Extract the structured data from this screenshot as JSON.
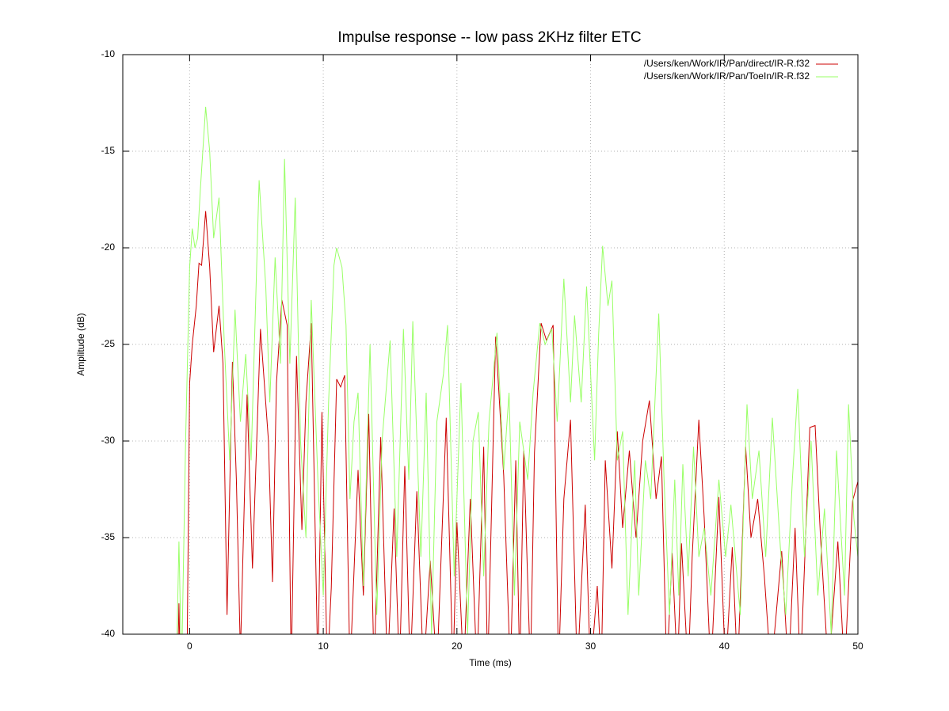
{
  "chart_data": {
    "type": "line",
    "title": "Impulse response -- low pass 2KHz filter ETC",
    "x_label": "Time (ms)",
    "y_label": "Amplitude (dB)",
    "xlim": [
      -5,
      50
    ],
    "xticks": [
      0,
      10,
      20,
      30,
      40,
      50
    ],
    "ylim": [
      -40,
      -10
    ],
    "yticks": [
      -40,
      -35,
      -30,
      -25,
      -20,
      -15,
      -10
    ],
    "grid": true,
    "legend": "top right",
    "series": [
      {
        "name": "/Users/ken/Work/IR/Pan/direct/IR-R.f32",
        "color": "#cc0000",
        "x": [
          -0.9,
          -0.8,
          -0.7,
          -0.2,
          0,
          0.2,
          0.5,
          0.7,
          0.9,
          1.2,
          1.5,
          1.8,
          2.2,
          2.5,
          2.8,
          3.2,
          3.5,
          3.8,
          4.3,
          4.7,
          5.3,
          5.9,
          6.2,
          6.5,
          6.9,
          7.3,
          7.6,
          8,
          8.4,
          8.7,
          9.1,
          9.6,
          9.9,
          10.3,
          10.6,
          11,
          11.3,
          11.6,
          12,
          12.6,
          13,
          13.4,
          13.8,
          14.3,
          14.8,
          15.3,
          15.7,
          16.1,
          16.5,
          17,
          17.5,
          18,
          18.5,
          19.2,
          19.7,
          20,
          20.5,
          21,
          21.5,
          22,
          22.3,
          22.9,
          23.5,
          24,
          24.4,
          24.7,
          25,
          25.5,
          25.8,
          26.3,
          26.7,
          27.2,
          27.6,
          28,
          28.5,
          29,
          29.6,
          30,
          30.5,
          30.8,
          31.1,
          31.6,
          32,
          32.4,
          32.9,
          33.4,
          33.9,
          34.4,
          34.9,
          35.3,
          35.7,
          36.1,
          36.5,
          36.8,
          37.3,
          37.6,
          38.1,
          38.5,
          39,
          39.6,
          40.1,
          40.6,
          41,
          41.6,
          42,
          42.5,
          43,
          43.5,
          44.3,
          44.8,
          45.3,
          45.7,
          46.4,
          46.8,
          47.2,
          47.8,
          48.5,
          49,
          49.6,
          50
        ],
        "values": [
          -42,
          -38.4,
          -42,
          -42,
          -27,
          -25,
          -23,
          -20.8,
          -20.9,
          -18.1,
          -21,
          -25.4,
          -23,
          -26,
          -39,
          -25.9,
          -32,
          -41,
          -27.6,
          -36.6,
          -24.2,
          -30,
          -37.3,
          -27,
          -22.7,
          -24,
          -42,
          -25.6,
          -34.6,
          -28,
          -23.9,
          -42,
          -28.5,
          -42,
          -37.6,
          -26.8,
          -27.2,
          -26.6,
          -42,
          -31.5,
          -38,
          -28.6,
          -42,
          -29.8,
          -42,
          -33.5,
          -42,
          -31.3,
          -42,
          -32.6,
          -42,
          -36.2,
          -42,
          -28.8,
          -42,
          -34.2,
          -42,
          -33,
          -42,
          -30.3,
          -42,
          -24.6,
          -31.8,
          -42,
          -31,
          -42,
          -30.5,
          -42,
          -30.6,
          -23.9,
          -24.8,
          -24,
          -42,
          -33,
          -28.9,
          -42,
          -33.3,
          -42,
          -37.5,
          -42,
          -31,
          -36.6,
          -29.5,
          -34.5,
          -30.5,
          -35,
          -30,
          -27.9,
          -33,
          -30.8,
          -42,
          -35.8,
          -42,
          -35.3,
          -42,
          -36,
          -28.9,
          -34,
          -42,
          -32.9,
          -42,
          -35.5,
          -42,
          -30.3,
          -35,
          -33,
          -37,
          -42,
          -35.7,
          -42,
          -34.5,
          -42,
          -29.3,
          -29.2,
          -35,
          -42,
          -35.2,
          -42,
          -33.1,
          -32.1
        ]
      },
      {
        "name": "/Users/ken/Work/IR/Pan/ToeIn/IR-R.f32",
        "color": "#99ff66",
        "x": [
          -1,
          -0.8,
          -0.6,
          -0.3,
          0,
          0.2,
          0.4,
          0.6,
          0.8,
          1.2,
          1.5,
          1.8,
          2.2,
          2.6,
          3,
          3.4,
          3.8,
          4.2,
          4.6,
          5.2,
          5.7,
          6,
          6.4,
          6.8,
          7.1,
          7.5,
          7.9,
          8.3,
          8.7,
          9.1,
          9.6,
          10,
          10.4,
          10.8,
          11,
          11.4,
          11.7,
          12,
          12.3,
          12.6,
          13,
          13.5,
          14,
          14.4,
          15,
          15.5,
          16,
          16.4,
          16.7,
          17.3,
          17.7,
          18.1,
          18.5,
          19,
          19.3,
          19.8,
          20.3,
          20.8,
          21.2,
          21.6,
          22,
          22.4,
          23,
          23.5,
          23.9,
          24.3,
          24.7,
          25.3,
          25.7,
          26.2,
          26.6,
          27.1,
          27.5,
          28,
          28.5,
          28.8,
          29.3,
          29.7,
          30.3,
          30.6,
          30.9,
          31.3,
          31.6,
          32,
          32.4,
          32.8,
          33.3,
          33.6,
          34.1,
          34.5,
          35.1,
          35.5,
          35.9,
          36.3,
          36.6,
          36.9,
          37.3,
          37.7,
          38.1,
          38.5,
          39,
          39.6,
          40.1,
          40.5,
          41.2,
          41.7,
          42.1,
          42.6,
          43.1,
          43.6,
          44.2,
          44.6,
          45.1,
          45.5,
          46,
          46.5,
          47,
          47.5,
          48,
          48.4,
          49,
          49.3,
          49.7,
          50
        ],
        "values": [
          -42,
          -35.2,
          -42,
          -30,
          -21,
          -19,
          -20,
          -19.5,
          -17,
          -12.7,
          -15,
          -19.5,
          -17.4,
          -25,
          -31,
          -23.2,
          -29,
          -25.5,
          -31,
          -16.5,
          -22,
          -28,
          -20.5,
          -26,
          -15.4,
          -26,
          -17.4,
          -30,
          -35,
          -22.7,
          -32,
          -38,
          -28,
          -20.9,
          -20,
          -21,
          -24,
          -33,
          -29,
          -27.5,
          -37.5,
          -25,
          -39,
          -30,
          -24.8,
          -36,
          -24.2,
          -32,
          -23.8,
          -36,
          -27.5,
          -40,
          -29,
          -26.5,
          -24,
          -37,
          -27,
          -40,
          -30,
          -28.5,
          -37,
          -29,
          -24.4,
          -31.5,
          -27.5,
          -38,
          -29,
          -32,
          -27.5,
          -23.9,
          -25,
          -24.2,
          -29,
          -21.6,
          -28,
          -23.5,
          -28,
          -22,
          -31,
          -24.5,
          -19.9,
          -23,
          -21.7,
          -31,
          -29.5,
          -39,
          -31,
          -38,
          -31,
          -33,
          -23.4,
          -32,
          -39,
          -32,
          -38,
          -31.2,
          -37,
          -30.3,
          -36,
          -34.5,
          -38,
          -32,
          -36,
          -33.3,
          -39,
          -28.1,
          -33,
          -30.5,
          -36,
          -28.8,
          -35.5,
          -39,
          -32,
          -27.3,
          -36,
          -30,
          -38,
          -33.5,
          -40,
          -30.5,
          -38,
          -28.1,
          -34,
          -36
        ]
      }
    ]
  }
}
